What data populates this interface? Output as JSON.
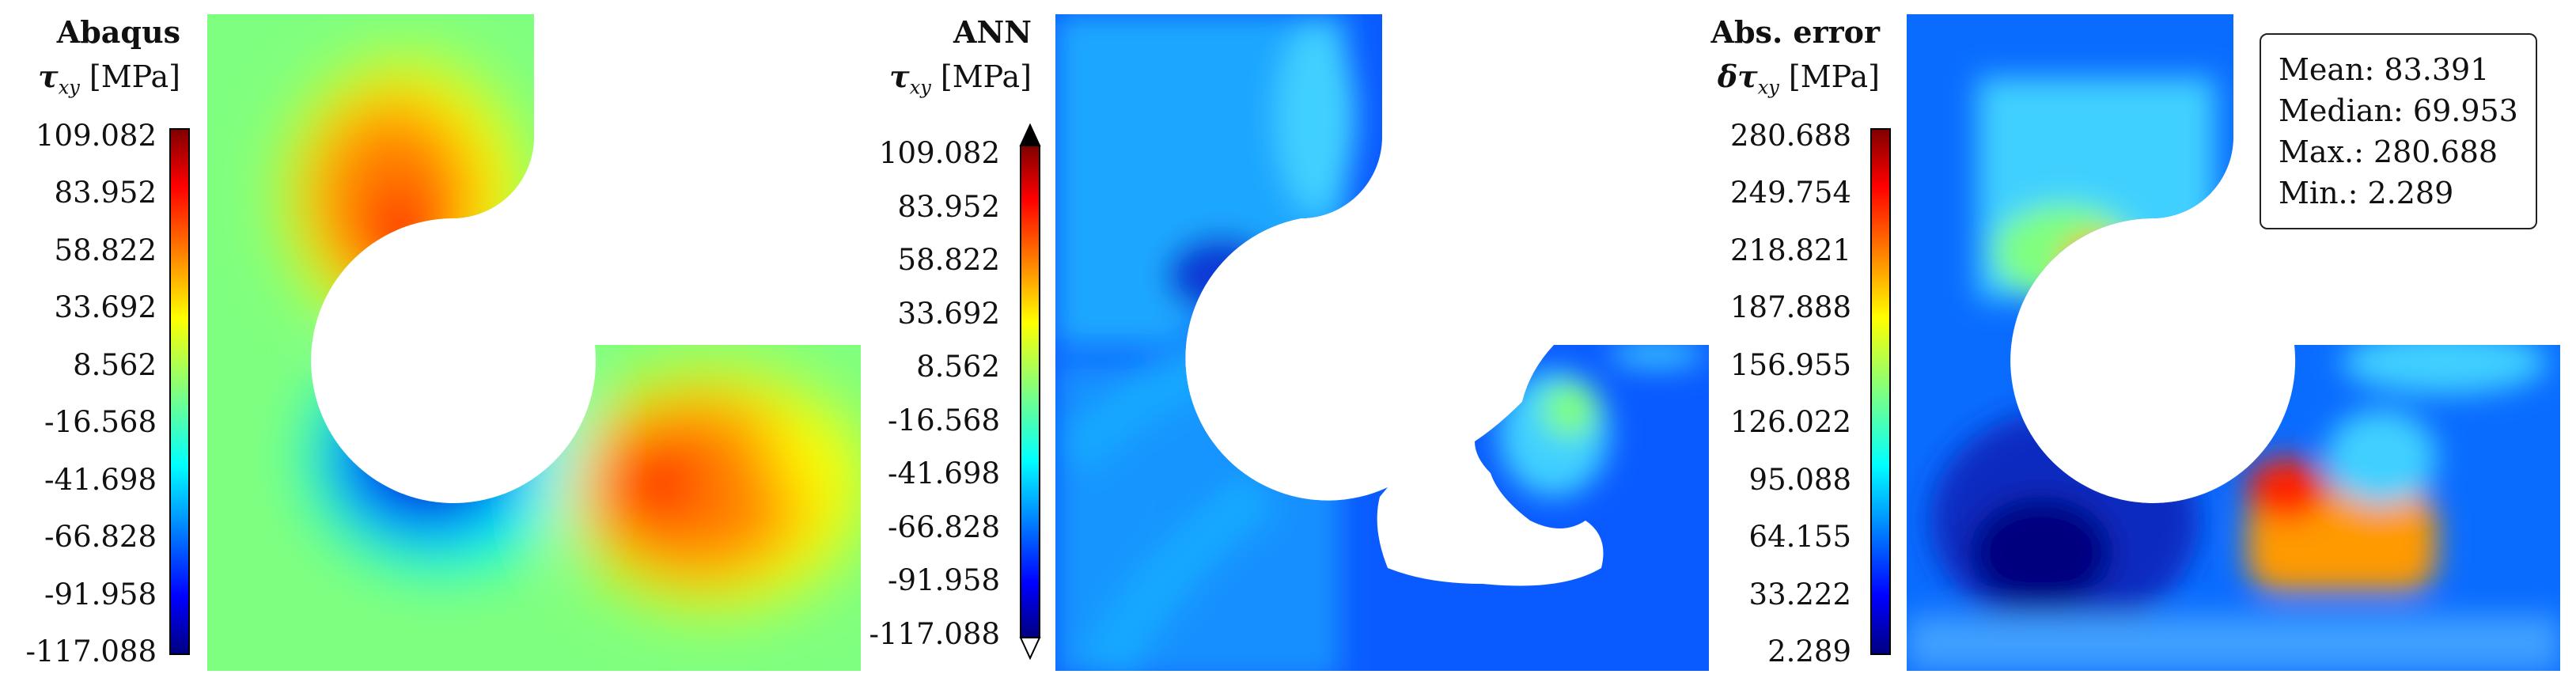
{
  "panels": [
    {
      "id": "abaqus",
      "title": "Abaqus",
      "symbol": "τ",
      "subscript": "xy",
      "unit": "[MPa]",
      "colorbar_ticks": [
        "109.082",
        "83.952",
        "58.822",
        "33.692",
        "8.562",
        "-16.568",
        "-41.698",
        "-66.828",
        "-91.958",
        "-117.088"
      ],
      "colorbar_extend_arrows": false
    },
    {
      "id": "ann",
      "title": "ANN",
      "symbol": "τ",
      "subscript": "xy",
      "unit": "[MPa]",
      "colorbar_ticks": [
        "109.082",
        "83.952",
        "58.822",
        "33.692",
        "8.562",
        "-16.568",
        "-41.698",
        "-66.828",
        "-91.958",
        "-117.088"
      ],
      "colorbar_extend_arrows": true
    },
    {
      "id": "error",
      "title": "Abs. error",
      "symbol": "δτ",
      "subscript": "xy",
      "unit": "[MPa]",
      "colorbar_ticks": [
        "280.688",
        "249.754",
        "218.821",
        "187.888",
        "156.955",
        "126.022",
        "95.088",
        "64.155",
        "33.222",
        "2.289"
      ],
      "colorbar_extend_arrows": false
    }
  ],
  "stats": {
    "mean": "Mean: 83.391",
    "median": "Median: 69.953",
    "max": "Max.: 280.688",
    "min": "Min.: 2.289"
  },
  "colormap": "jet",
  "colors": [
    "#00007f",
    "#0000ff",
    "#007fff",
    "#00ffff",
    "#7fff7f",
    "#ffff00",
    "#ff7f00",
    "#ff0000",
    "#7f0000"
  ]
}
